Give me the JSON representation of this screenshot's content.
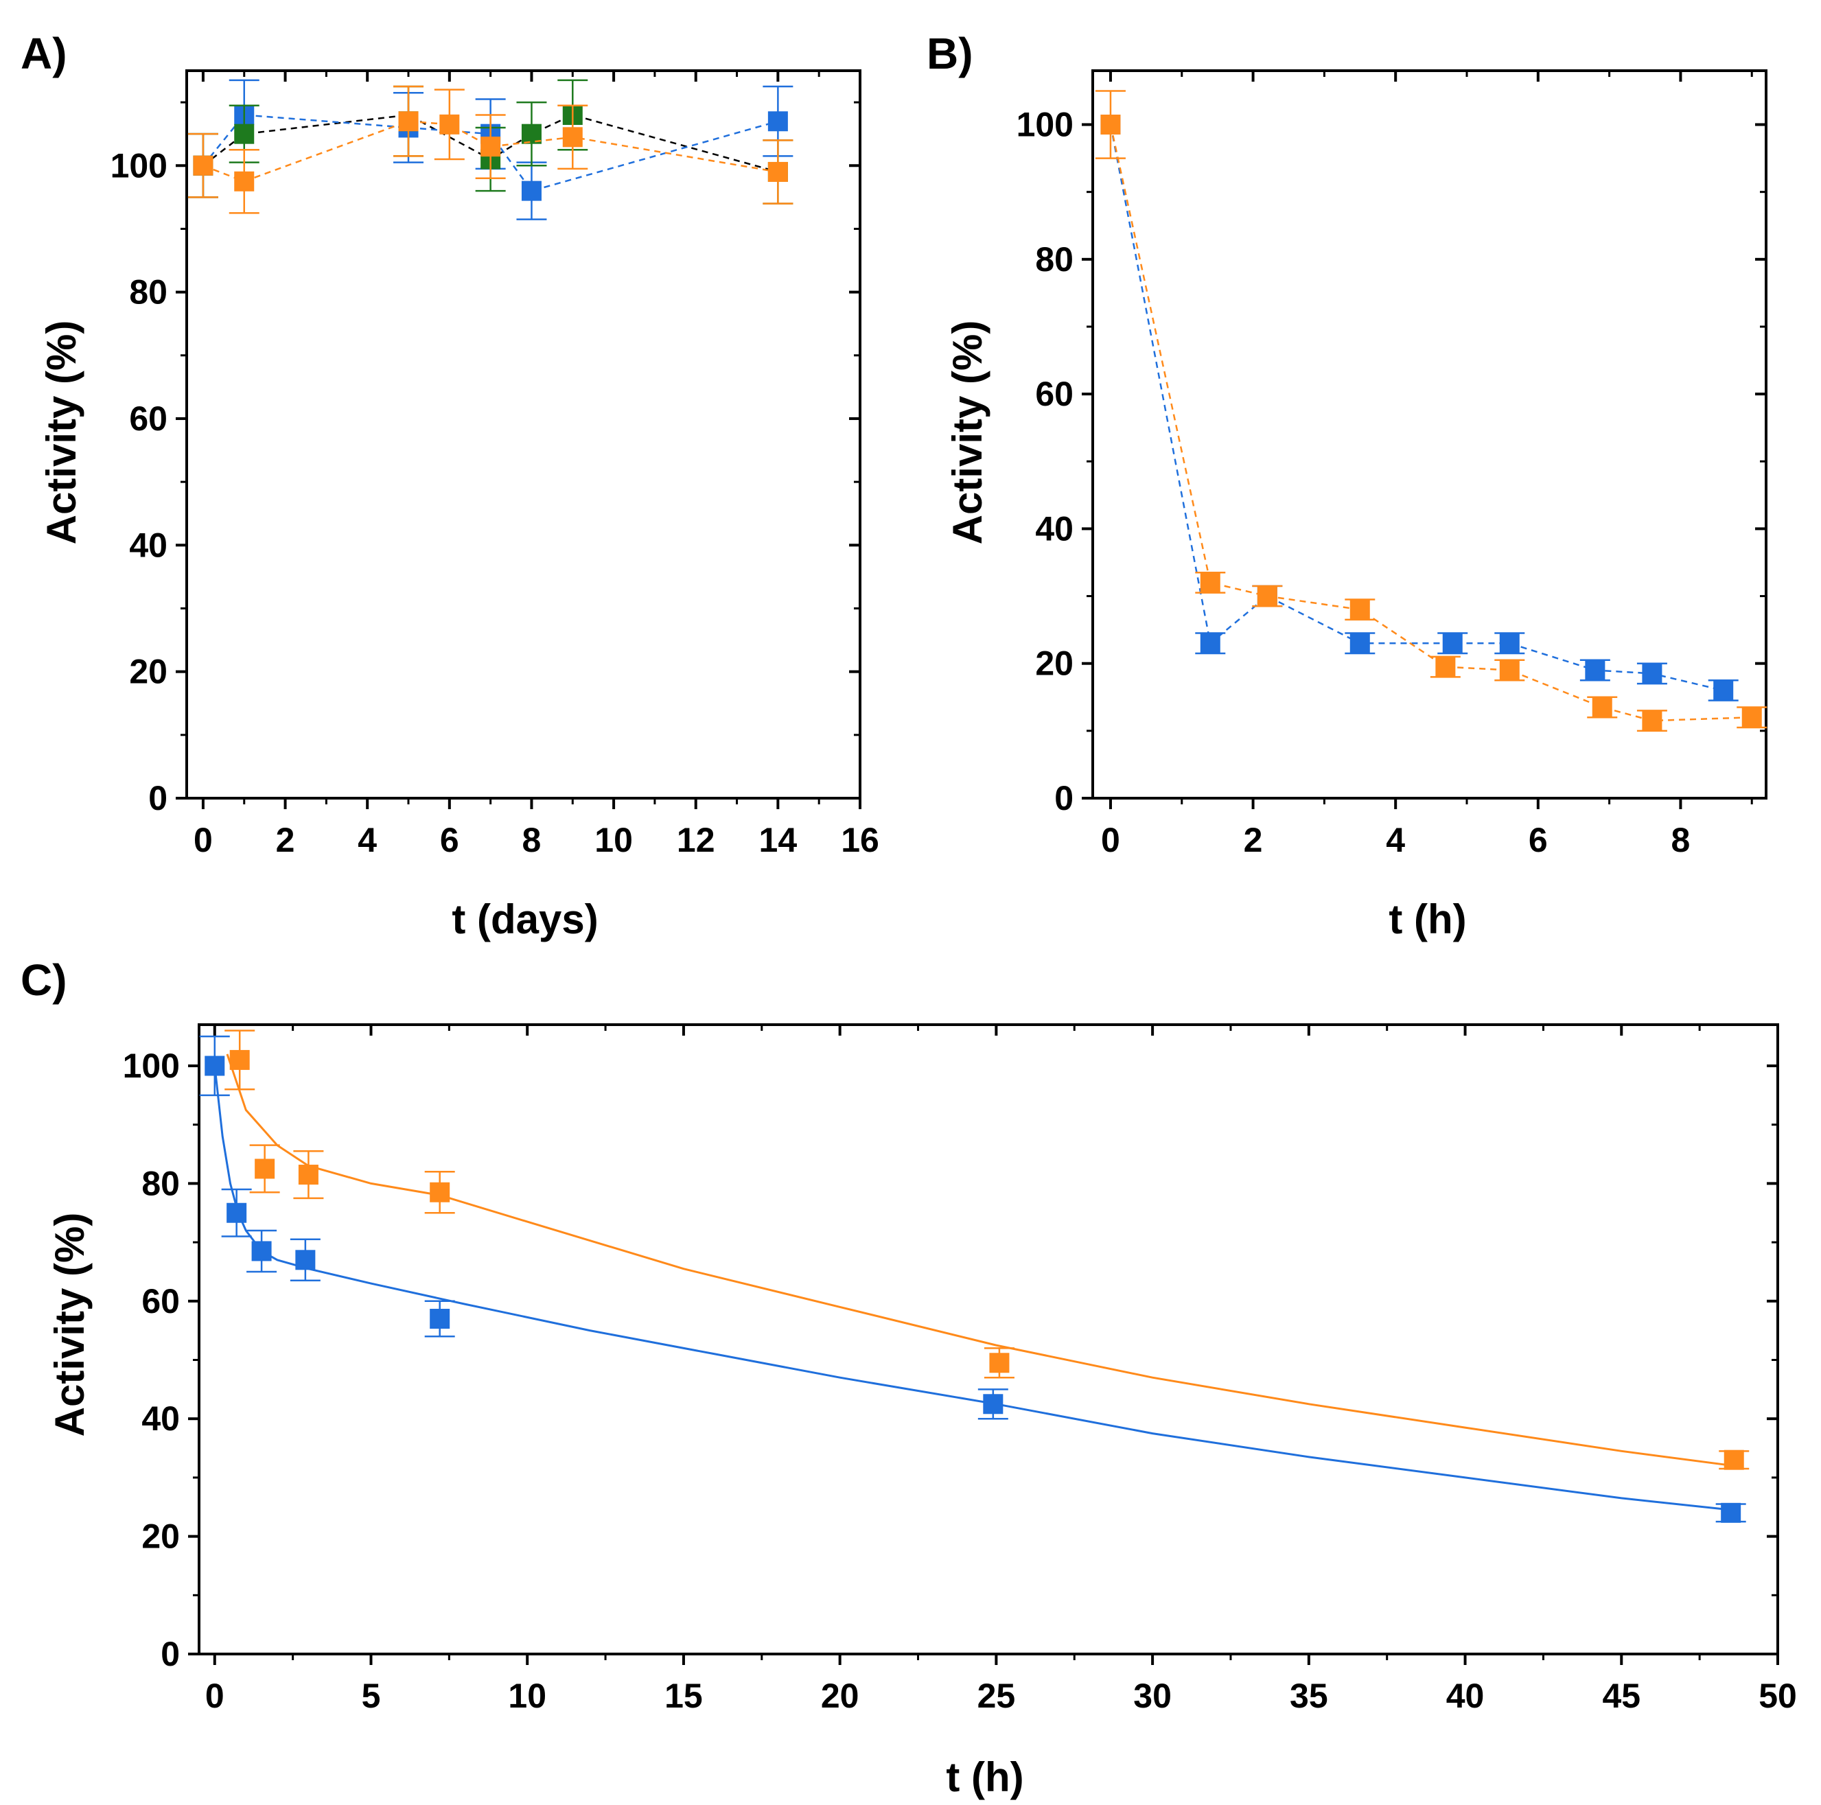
{
  "colors": {
    "blue": "#1f6fdc",
    "orange": "#ff8a1a",
    "green": "#1e7a1e",
    "black": "#000000"
  },
  "chart_data": [
    {
      "panel": "A)",
      "type": "line",
      "xlabel": "t (days)",
      "ylabel": "Activity (%)",
      "xlim": [
        -0.4,
        16
      ],
      "ylim": [
        0,
        115
      ],
      "xticks": [
        0,
        2,
        4,
        6,
        8,
        10,
        12,
        14,
        16
      ],
      "yticks": [
        0,
        20,
        40,
        60,
        80,
        100
      ],
      "legend": "none",
      "series": [
        {
          "name": "black",
          "color": "#000000",
          "line": "dashed",
          "markers": false,
          "x": [
            0,
            1,
            5,
            7,
            8,
            9,
            14
          ],
          "y": [
            100,
            105,
            108,
            101,
            105,
            108,
            99
          ],
          "err": []
        },
        {
          "name": "blue",
          "color": "#1f6fdc",
          "line": "dashed",
          "markers": true,
          "x": [
            0,
            1,
            5,
            7,
            8,
            14
          ],
          "y": [
            100,
            108,
            106,
            105,
            96,
            107
          ],
          "err": [
            5,
            5.5,
            5.5,
            5.5,
            4.5,
            5.5
          ]
        },
        {
          "name": "green",
          "color": "#1e7a1e",
          "line": "none",
          "markers": true,
          "x": [
            0,
            1,
            5,
            7,
            8,
            9,
            14
          ],
          "y": [
            100,
            105,
            107,
            101,
            105,
            108,
            99
          ],
          "err": [
            5,
            4.5,
            5.5,
            5,
            5,
            5.5,
            5
          ]
        },
        {
          "name": "orange",
          "color": "#ff8a1a",
          "line": "dashed",
          "markers": true,
          "x": [
            0,
            1,
            5,
            6,
            7,
            9,
            14
          ],
          "y": [
            100,
            97.5,
            107,
            106.5,
            103,
            104.5,
            99
          ],
          "err": [
            5,
            5,
            5.5,
            5.5,
            5,
            5,
            5
          ]
        }
      ]
    },
    {
      "panel": "B)",
      "type": "line",
      "xlabel": "t (h)",
      "ylabel": "Activity (%)",
      "xlim": [
        -0.25,
        9.2
      ],
      "ylim": [
        0,
        108
      ],
      "xticks": [
        0,
        2,
        4,
        6,
        8
      ],
      "yticks": [
        0,
        20,
        40,
        60,
        80,
        100
      ],
      "legend": "none",
      "series": [
        {
          "name": "blue",
          "color": "#1f6fdc",
          "line": "dashed",
          "markers": true,
          "x": [
            0,
            1.4,
            2.2,
            3.5,
            4.8,
            5.6,
            6.8,
            7.6,
            8.6
          ],
          "y": [
            100,
            23,
            30,
            23,
            23,
            23,
            19,
            18.5,
            16
          ],
          "err": [
            0,
            1.5,
            1.5,
            1.5,
            1.5,
            1.5,
            1.5,
            1.5,
            1.5
          ]
        },
        {
          "name": "orange",
          "color": "#ff8a1a",
          "line": "dashed",
          "markers": true,
          "x": [
            0,
            1.4,
            2.2,
            3.5,
            4.7,
            5.6,
            6.9,
            7.6,
            9.0
          ],
          "y": [
            100,
            32,
            30,
            28,
            19.5,
            19,
            13.5,
            11.5,
            12
          ],
          "err": [
            5,
            1.5,
            1.5,
            1.5,
            1.5,
            1.5,
            1.5,
            1.5,
            1.5
          ]
        }
      ]
    },
    {
      "panel": "C)",
      "type": "scatter",
      "xlabel": "t (h)",
      "ylabel": "Activity (%)",
      "xlim": [
        -0.5,
        50
      ],
      "ylim": [
        0,
        107
      ],
      "xticks": [
        0,
        5,
        10,
        15,
        20,
        25,
        30,
        35,
        40,
        45,
        50
      ],
      "yticks": [
        0,
        20,
        40,
        60,
        80,
        100
      ],
      "legend": "none",
      "series": [
        {
          "name": "blue",
          "color": "#1f6fdc",
          "line": "none",
          "markers": true,
          "x": [
            0,
            0.7,
            1.5,
            2.9,
            7.2,
            24.9,
            48.5
          ],
          "y": [
            100,
            75,
            68.5,
            67,
            57,
            42.5,
            24
          ],
          "err": [
            5,
            4,
            3.5,
            3.5,
            3,
            2.5,
            1.5
          ],
          "fit": {
            "x": [
              0,
              0.25,
              0.5,
              0.75,
              1,
              1.5,
              2,
              3,
              5,
              8,
              12,
              16,
              20,
              25,
              30,
              35,
              40,
              45,
              48.5
            ],
            "y": [
              100,
              88,
              80,
              75,
              72,
              68.5,
              67,
              65.5,
              63,
              59.5,
              55,
              51,
              47,
              42.5,
              37.5,
              33.5,
              30,
              26.5,
              24.5
            ]
          }
        },
        {
          "name": "orange",
          "color": "#ff8a1a",
          "line": "none",
          "markers": true,
          "x": [
            0.8,
            1.6,
            3.0,
            7.2,
            25.1,
            48.6
          ],
          "y": [
            101,
            82.5,
            81.5,
            78.5,
            49.5,
            33
          ],
          "err": [
            5,
            4,
            4,
            3.5,
            2.5,
            1.5
          ],
          "fit": {
            "x": [
              0.4,
              1,
              2,
              3,
              5,
              7.2,
              10,
              15,
              20,
              25,
              30,
              35,
              40,
              45,
              48.6
            ],
            "y": [
              102,
              92.5,
              86.5,
              83,
              80,
              78,
              73.5,
              65.5,
              59,
              52.5,
              47,
              42.5,
              38.5,
              34.5,
              32
            ]
          }
        }
      ]
    }
  ]
}
